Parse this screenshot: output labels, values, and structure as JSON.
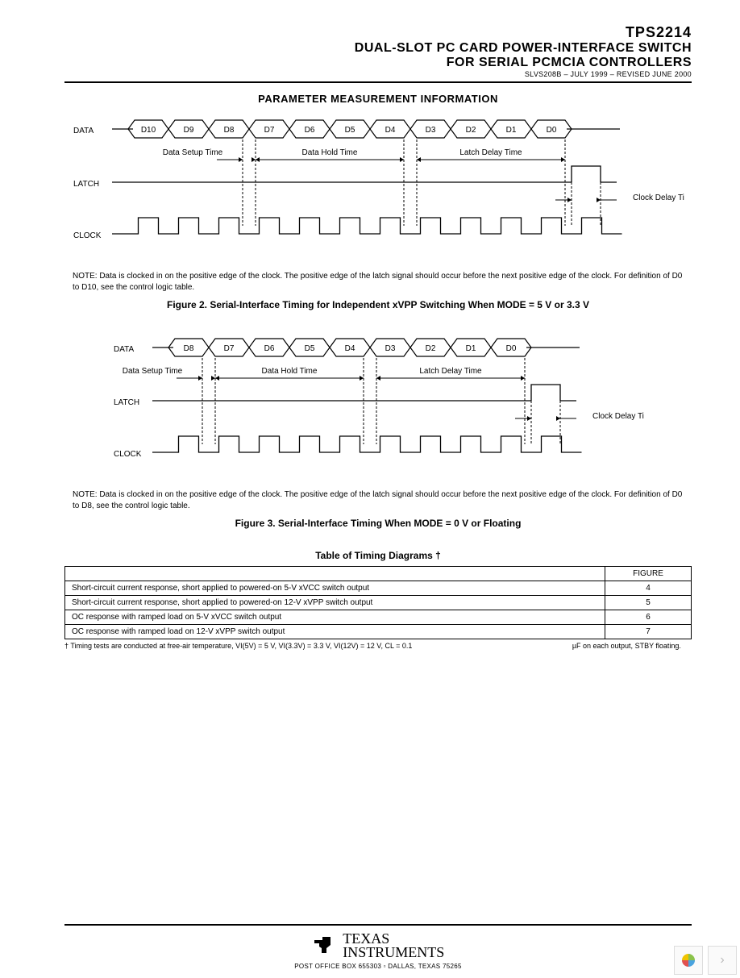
{
  "header": {
    "part": "TPS2214",
    "title1": "DUAL-SLOT PC CARD POWER-INTERFACE SWITCH",
    "title2": "FOR SERIAL PCMCIA CONTROLLERS",
    "doccode": "SLVS208B – JULY 1999 – REVISED JUNE 2000"
  },
  "section_title": "PARAMETER MEASUREMENT INFORMATION",
  "diagram1": {
    "signals": {
      "data": "DATA",
      "latch": "LATCH",
      "clock": "CLOCK"
    },
    "bits": [
      "D10",
      "D9",
      "D8",
      "D7",
      "D6",
      "D5",
      "D4",
      "D3",
      "D2",
      "D1",
      "D0"
    ],
    "labels": {
      "setup": "Data Setup Time",
      "hold": "Data Hold Time",
      "latch_delay": "Latch Delay Time",
      "clock_delay": "Clock Delay Time"
    }
  },
  "note1": "NOTE: Data is clocked in on the positive edge of the clock. The positive edge of the latch signal should occur before the next positive edge of the clock. For definition of D0 to D10, see the control logic table.",
  "caption1": "Figure 2. Serial-Interface Timing for Independent xVPP Switching When MODE = 5 V or 3.3 V",
  "diagram2": {
    "signals": {
      "data": "DATA",
      "latch": "LATCH",
      "clock": "CLOCK"
    },
    "bits": [
      "D8",
      "D7",
      "D6",
      "D5",
      "D4",
      "D3",
      "D2",
      "D1",
      "D0"
    ],
    "labels": {
      "setup": "Data Setup Time",
      "hold": "Data Hold Time",
      "latch_delay": "Latch Delay Time",
      "clock_delay": "Clock Delay Time"
    }
  },
  "note2": "NOTE: Data is clocked in on the positive edge of the clock. The positive edge of the latch signal should occur before the next positive edge of the clock. For definition of D0 to D8, see the control logic table.",
  "caption2": "Figure 3. Serial-Interface Timing When MODE = 0 V or Floating",
  "table_title": "Table of Timing Diagrams        †",
  "table": {
    "header_col": "FIGURE",
    "rows": [
      {
        "desc": "Short-circuit current response, short applied to powered-on 5-V xVCC switch output",
        "fig": "4"
      },
      {
        "desc": "Short-circuit current response, short applied to powered-on 12-V xVPP switch output",
        "fig": "5"
      },
      {
        "desc": "OC response with ramped load on 5-V xVCC switch output",
        "fig": "6"
      },
      {
        "desc": "OC response with ramped load on 12-V xVPP switch output",
        "fig": "7"
      }
    ]
  },
  "table_foot_left": "† Timing tests are conducted at free-air temperature, VI(5V) = 5 V, VI(3.3V) = 3.3 V, VI(12V) = 12 V, CL = 0.1",
  "table_foot_right": "µF on each output, STBY floating.",
  "footer": {
    "brand1": "TEXAS",
    "brand2": "INSTRUMENTS",
    "addr": "POST OFFICE BOX 655303  ▫  DALLAS, TEXAS 75265"
  },
  "style": {
    "bg": "#ffffff",
    "fg": "#000000",
    "note_fontsize": 10,
    "caption_fontsize": 12,
    "diagram_hex_w": 50,
    "diagram_row_h": 30
  }
}
